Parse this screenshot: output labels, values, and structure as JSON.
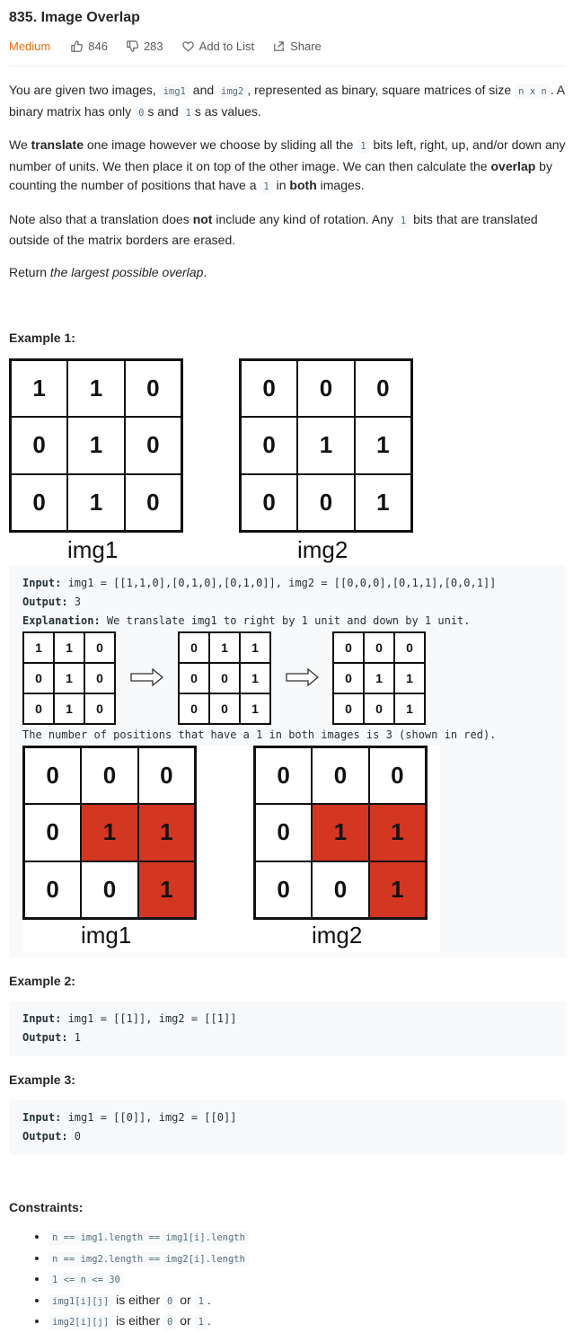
{
  "header": {
    "title": "835. Image Overlap",
    "difficulty": "Medium",
    "likes": "846",
    "dislikes": "283",
    "add_to_list": "Add to List",
    "share": "Share"
  },
  "description": {
    "p1": {
      "t1": "You are given two images, ",
      "c1": "img1",
      "t2": " and ",
      "c2": "img2",
      "t3": ", represented as binary, square matrices of size ",
      "c3": "n x n",
      "t4": ". A binary matrix has only ",
      "c4": "0",
      "t5": "s and ",
      "c5": "1",
      "t6": "s as values."
    },
    "p2": {
      "t1": "We ",
      "b1": "translate",
      "t2": " one image however we choose by sliding all the ",
      "c1": "1",
      "t3": " bits left, right, up, and/or down any number of units. We then place it on top of the other image. We can then calculate the ",
      "b2": "overlap",
      "t4": " by counting the number of positions that have a ",
      "c2": "1",
      "t5": " in ",
      "b3": "both",
      "t6": " images."
    },
    "p3": {
      "t1": "Note also that a translation does ",
      "b1": "not",
      "t2": " include any kind of rotation. Any ",
      "c1": "1",
      "t3": " bits that are translated outside of the matrix borders are erased."
    },
    "p4": {
      "t1": "Return ",
      "i1": "the largest possible overlap",
      "t2": "."
    }
  },
  "example1": {
    "heading": "Example 1:",
    "fig": {
      "left_label": "img1",
      "right_label": "img2",
      "left": [
        "1",
        "1",
        "0",
        "0",
        "1",
        "0",
        "0",
        "1",
        "0"
      ],
      "right": [
        "0",
        "0",
        "0",
        "0",
        "1",
        "1",
        "0",
        "0",
        "1"
      ]
    },
    "input_label": "Input:",
    "input_value": " img1 = [[1,1,0],[0,1,0],[0,1,0]], img2 = [[0,0,0],[0,1,1],[0,0,1]]",
    "output_label": "Output:",
    "output_value": " 3",
    "explanation_label": "Explanation:",
    "explanation_value": " We translate img1 to right by 1 unit and down by 1 unit.",
    "steps": [
      [
        "1",
        "1",
        "0",
        "0",
        "1",
        "0",
        "0",
        "1",
        "0"
      ],
      [
        "0",
        "1",
        "1",
        "0",
        "0",
        "1",
        "0",
        "0",
        "1"
      ],
      [
        "0",
        "0",
        "0",
        "0",
        "1",
        "1",
        "0",
        "0",
        "1"
      ]
    ],
    "note": "The number of positions that have a 1 in both images is 3 (shown in red).",
    "overlap": {
      "left_label": "img1",
      "right_label": "img2",
      "left": [
        "0",
        "0",
        "0",
        "0",
        "1",
        "1",
        "0",
        "0",
        "1"
      ],
      "right": [
        "0",
        "0",
        "0",
        "0",
        "1",
        "1",
        "0",
        "0",
        "1"
      ],
      "red_color": "#d33621"
    }
  },
  "example2": {
    "heading": "Example 2:",
    "input_label": "Input:",
    "input_value": " img1 = [[1]], img2 = [[1]]",
    "output_label": "Output:",
    "output_value": " 1"
  },
  "example3": {
    "heading": "Example 3:",
    "input_label": "Input:",
    "input_value": " img1 = [[0]], img2 = [[0]]",
    "output_label": "Output:",
    "output_value": " 0"
  },
  "constraints": {
    "heading": "Constraints:",
    "items": [
      {
        "code": "n == img1.length == img1[i].length",
        "text": ""
      },
      {
        "code": "n == img2.length == img2[i].length",
        "text": ""
      },
      {
        "code": "1 <= n <= 30",
        "text": ""
      },
      {
        "code": "img1[i][j]",
        "text": " is either ",
        "code2": "0",
        "text2": " or ",
        "code3": "1",
        "text3": "."
      },
      {
        "code": "img2[i][j]",
        "text": " is either ",
        "code2": "0",
        "text2": " or ",
        "code3": "1",
        "text3": "."
      }
    ]
  },
  "colors": {
    "difficulty": "#ef6c00",
    "code_bg": "#f7f9fa",
    "red_cell": "#d33621"
  }
}
